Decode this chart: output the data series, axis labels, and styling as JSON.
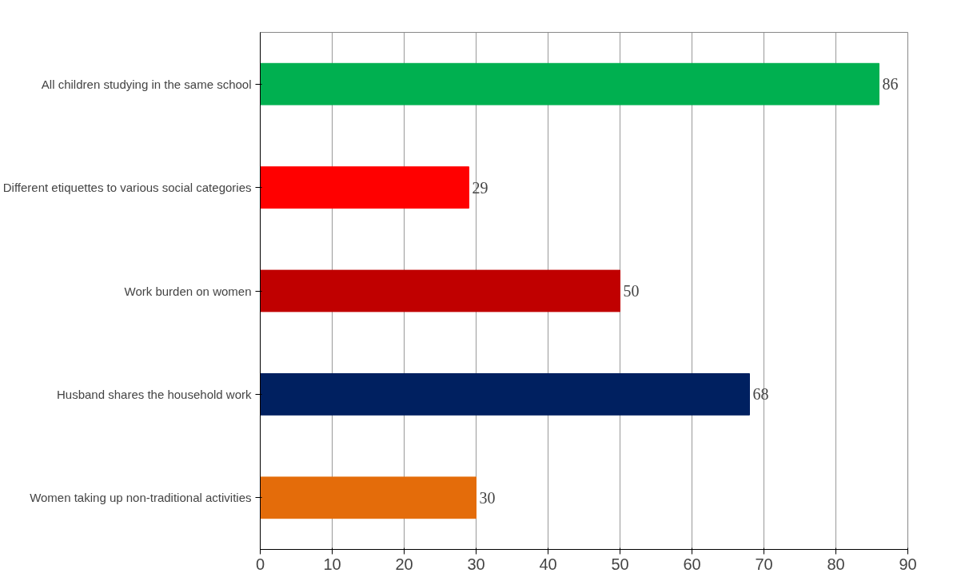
{
  "chart_data": {
    "type": "bar",
    "orientation": "horizontal",
    "categories": [
      "All children studying in the same school",
      "Different etiquettes to various social categories",
      "Work burden on women",
      "Husband shares the household work",
      "Women taking up non-traditional activities"
    ],
    "values": [
      86,
      29,
      50,
      68,
      30
    ],
    "colors": [
      "#00b050",
      "#ff0000",
      "#c00000",
      "#002060",
      "#e46c0a"
    ],
    "xlim": [
      0,
      90
    ],
    "xticks": [
      0,
      10,
      20,
      30,
      40,
      50,
      60,
      70,
      80,
      90
    ],
    "grid": "x",
    "data_labels": true
  }
}
